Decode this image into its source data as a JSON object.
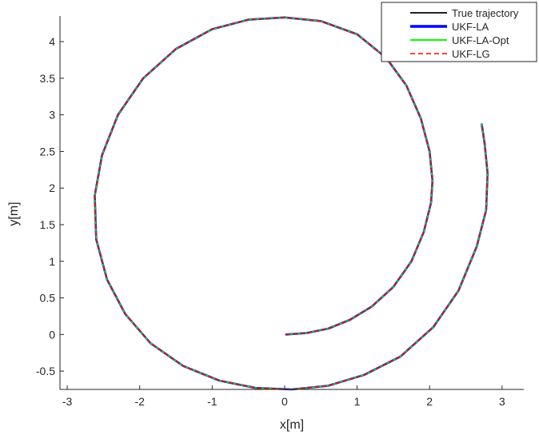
{
  "chart_data": {
    "type": "line",
    "title": "",
    "xlabel": "x[m]",
    "ylabel": "y[m]",
    "xlim": [
      -3.1,
      3.3
    ],
    "ylim": [
      -0.75,
      4.35
    ],
    "xticks": [
      -3,
      -2,
      -1,
      0,
      1,
      2,
      3
    ],
    "xtick_labels": [
      "-3",
      "-2",
      "-1",
      "0",
      "1",
      "2",
      "3"
    ],
    "yticks": [
      -0.5,
      0,
      0.5,
      1,
      1.5,
      2,
      2.5,
      3,
      3.5,
      4
    ],
    "ytick_labels": [
      "-0.5",
      "0",
      "0.5",
      "1",
      "1.5",
      "2",
      "2.5",
      "3",
      "3.5",
      "4"
    ],
    "grid": false,
    "legend_position": "top-right",
    "series": [
      {
        "name": "True trajectory",
        "color": "#000000",
        "style": "solid",
        "points": [
          [
            0.02,
            0.0
          ],
          [
            0.3,
            0.02
          ],
          [
            0.6,
            0.08
          ],
          [
            0.9,
            0.2
          ],
          [
            1.2,
            0.38
          ],
          [
            1.5,
            0.65
          ],
          [
            1.75,
            1.0
          ],
          [
            1.92,
            1.4
          ],
          [
            2.02,
            1.8
          ],
          [
            2.04,
            2.1
          ],
          [
            2.0,
            2.5
          ],
          [
            1.88,
            2.95
          ],
          [
            1.68,
            3.4
          ],
          [
            1.4,
            3.78
          ],
          [
            1.0,
            4.1
          ],
          [
            0.5,
            4.28
          ],
          [
            0.0,
            4.33
          ],
          [
            -0.5,
            4.3
          ],
          [
            -1.0,
            4.17
          ],
          [
            -1.5,
            3.9
          ],
          [
            -1.95,
            3.5
          ],
          [
            -2.3,
            3.0
          ],
          [
            -2.52,
            2.45
          ],
          [
            -2.62,
            1.9
          ],
          [
            -2.6,
            1.3
          ],
          [
            -2.45,
            0.75
          ],
          [
            -2.2,
            0.28
          ],
          [
            -1.85,
            -0.12
          ],
          [
            -1.4,
            -0.43
          ],
          [
            -0.9,
            -0.63
          ],
          [
            -0.4,
            -0.73
          ],
          [
            0.1,
            -0.75
          ],
          [
            0.6,
            -0.7
          ],
          [
            1.1,
            -0.55
          ],
          [
            1.6,
            -0.3
          ],
          [
            2.05,
            0.1
          ],
          [
            2.4,
            0.6
          ],
          [
            2.65,
            1.2
          ],
          [
            2.78,
            1.7
          ],
          [
            2.8,
            2.2
          ],
          [
            2.76,
            2.6
          ],
          [
            2.72,
            2.87
          ]
        ]
      },
      {
        "name": "UKF-LA",
        "color": "#0000ff",
        "style": "solid",
        "points": [
          [
            0.02,
            0.0
          ],
          [
            0.3,
            0.02
          ],
          [
            0.6,
            0.08
          ],
          [
            0.9,
            0.2
          ],
          [
            1.2,
            0.38
          ],
          [
            1.5,
            0.65
          ],
          [
            1.75,
            1.0
          ],
          [
            1.92,
            1.4
          ],
          [
            2.02,
            1.8
          ],
          [
            2.04,
            2.1
          ],
          [
            2.0,
            2.5
          ],
          [
            1.88,
            2.95
          ],
          [
            1.68,
            3.4
          ],
          [
            1.4,
            3.78
          ],
          [
            1.0,
            4.1
          ],
          [
            0.5,
            4.28
          ],
          [
            0.0,
            4.33
          ],
          [
            -0.5,
            4.3
          ],
          [
            -1.0,
            4.17
          ],
          [
            -1.5,
            3.9
          ],
          [
            -1.95,
            3.5
          ],
          [
            -2.3,
            3.0
          ],
          [
            -2.52,
            2.45
          ],
          [
            -2.62,
            1.9
          ],
          [
            -2.6,
            1.3
          ],
          [
            -2.45,
            0.75
          ],
          [
            -2.2,
            0.28
          ],
          [
            -1.85,
            -0.12
          ],
          [
            -1.4,
            -0.43
          ],
          [
            -0.9,
            -0.63
          ],
          [
            -0.4,
            -0.73
          ],
          [
            0.1,
            -0.75
          ],
          [
            0.6,
            -0.7
          ],
          [
            1.1,
            -0.55
          ],
          [
            1.6,
            -0.3
          ],
          [
            2.05,
            0.1
          ],
          [
            2.4,
            0.6
          ],
          [
            2.65,
            1.2
          ],
          [
            2.78,
            1.7
          ],
          [
            2.8,
            2.2
          ],
          [
            2.76,
            2.6
          ],
          [
            2.72,
            2.87
          ]
        ]
      },
      {
        "name": "UKF-LA-Opt",
        "color": "#00ff00",
        "style": "solid",
        "points": [
          [
            0.02,
            0.0
          ],
          [
            0.3,
            0.02
          ],
          [
            0.6,
            0.08
          ],
          [
            0.9,
            0.2
          ],
          [
            1.2,
            0.38
          ],
          [
            1.5,
            0.65
          ],
          [
            1.75,
            1.0
          ],
          [
            1.92,
            1.4
          ],
          [
            2.02,
            1.8
          ],
          [
            2.04,
            2.1
          ],
          [
            2.0,
            2.5
          ],
          [
            1.88,
            2.95
          ],
          [
            1.68,
            3.4
          ],
          [
            1.4,
            3.78
          ],
          [
            1.0,
            4.1
          ],
          [
            0.5,
            4.28
          ],
          [
            0.0,
            4.33
          ],
          [
            -0.5,
            4.3
          ],
          [
            -1.0,
            4.17
          ],
          [
            -1.5,
            3.9
          ],
          [
            -1.95,
            3.5
          ],
          [
            -2.3,
            3.0
          ],
          [
            -2.52,
            2.45
          ],
          [
            -2.62,
            1.9
          ],
          [
            -2.6,
            1.3
          ],
          [
            -2.45,
            0.75
          ],
          [
            -2.2,
            0.28
          ],
          [
            -1.85,
            -0.12
          ],
          [
            -1.4,
            -0.43
          ],
          [
            -0.9,
            -0.63
          ],
          [
            -0.4,
            -0.73
          ],
          [
            0.1,
            -0.75
          ],
          [
            0.6,
            -0.7
          ],
          [
            1.1,
            -0.55
          ],
          [
            1.6,
            -0.3
          ],
          [
            2.05,
            0.1
          ],
          [
            2.4,
            0.6
          ],
          [
            2.65,
            1.2
          ],
          [
            2.78,
            1.7
          ],
          [
            2.8,
            2.2
          ],
          [
            2.76,
            2.6
          ],
          [
            2.72,
            2.87
          ]
        ]
      },
      {
        "name": "UKF-LG",
        "color": "#ff0000",
        "style": "dashed",
        "points": [
          [
            0.02,
            0.0
          ],
          [
            0.3,
            0.02
          ],
          [
            0.6,
            0.08
          ],
          [
            0.9,
            0.2
          ],
          [
            1.2,
            0.38
          ],
          [
            1.5,
            0.65
          ],
          [
            1.75,
            1.0
          ],
          [
            1.92,
            1.4
          ],
          [
            2.02,
            1.8
          ],
          [
            2.04,
            2.1
          ],
          [
            2.0,
            2.5
          ],
          [
            1.88,
            2.95
          ],
          [
            1.68,
            3.4
          ],
          [
            1.4,
            3.78
          ],
          [
            1.0,
            4.1
          ],
          [
            0.5,
            4.28
          ],
          [
            0.0,
            4.33
          ],
          [
            -0.5,
            4.3
          ],
          [
            -1.0,
            4.17
          ],
          [
            -1.5,
            3.9
          ],
          [
            -1.95,
            3.5
          ],
          [
            -2.3,
            3.0
          ],
          [
            -2.52,
            2.45
          ],
          [
            -2.62,
            1.9
          ],
          [
            -2.6,
            1.3
          ],
          [
            -2.45,
            0.75
          ],
          [
            -2.2,
            0.28
          ],
          [
            -1.85,
            -0.12
          ],
          [
            -1.4,
            -0.43
          ],
          [
            -0.9,
            -0.63
          ],
          [
            -0.4,
            -0.73
          ],
          [
            0.1,
            -0.75
          ],
          [
            0.6,
            -0.7
          ],
          [
            1.1,
            -0.55
          ],
          [
            1.6,
            -0.3
          ],
          [
            2.05,
            0.1
          ],
          [
            2.4,
            0.6
          ],
          [
            2.65,
            1.2
          ],
          [
            2.78,
            1.7
          ],
          [
            2.8,
            2.2
          ],
          [
            2.76,
            2.6
          ],
          [
            2.72,
            2.87
          ]
        ]
      }
    ]
  }
}
